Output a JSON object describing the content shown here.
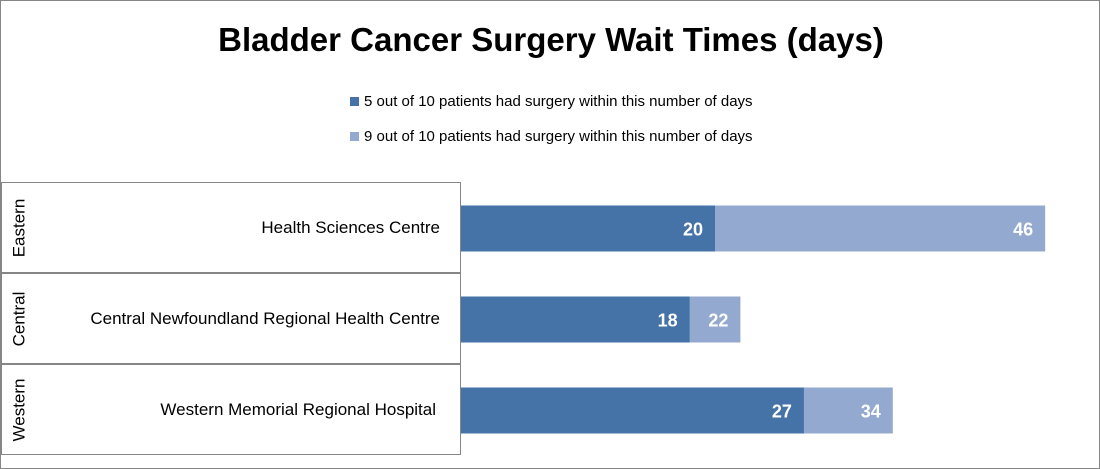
{
  "chart_data": {
    "type": "bar",
    "orientation": "horizontal",
    "overlap": true,
    "title": "Bladder Cancer Surgery Wait Times (days)",
    "categories": [
      {
        "region": "Eastern",
        "site": "Health Sciences Centre"
      },
      {
        "region": "Central",
        "site": "Central Newfoundland Regional Health Centre"
      },
      {
        "region": "Western",
        "site": "Western Memorial Regional Hospital"
      }
    ],
    "series": [
      {
        "name": "5 out of 10 patients had surgery within this number of days",
        "color": "#4573A7",
        "values": [
          20,
          18,
          27
        ]
      },
      {
        "name": "9 out of 10 patients had surgery within this number of days",
        "color": "#93A9CF",
        "values": [
          46,
          22,
          34
        ]
      }
    ],
    "legend_position": "top",
    "grid": false
  }
}
